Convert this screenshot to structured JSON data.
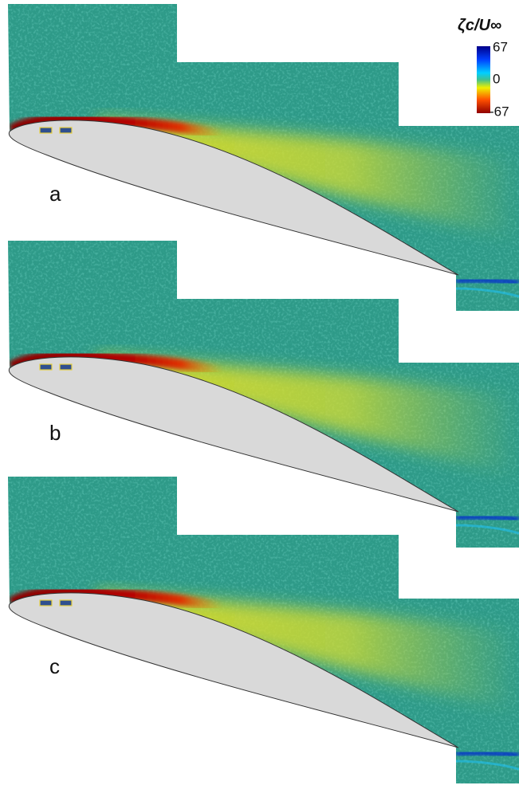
{
  "colorbar": {
    "title": "ζc/U∞",
    "ticks": [
      67,
      0,
      -67
    ]
  },
  "panels": [
    {
      "label": "a"
    },
    {
      "label": "b"
    },
    {
      "label": "c"
    }
  ]
}
